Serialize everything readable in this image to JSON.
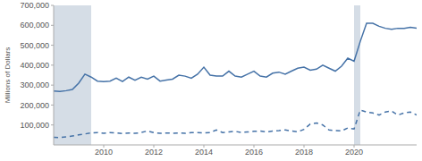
{
  "chart_data": {
    "type": "line",
    "y_label": "Millions of Dollars",
    "x": [
      2008,
      2008.25,
      2008.5,
      2008.75,
      2009,
      2009.25,
      2009.5,
      2009.75,
      2010,
      2010.25,
      2010.5,
      2010.75,
      2011,
      2011.25,
      2011.5,
      2011.75,
      2012,
      2012.25,
      2012.5,
      2012.75,
      2013,
      2013.25,
      2013.5,
      2013.75,
      2014,
      2014.25,
      2014.5,
      2014.75,
      2015,
      2015.25,
      2015.5,
      2015.75,
      2016,
      2016.25,
      2016.5,
      2016.75,
      2017,
      2017.25,
      2017.5,
      2017.75,
      2018,
      2018.25,
      2018.5,
      2018.75,
      2019,
      2019.25,
      2019.5,
      2019.75,
      2020,
      2020.25,
      2020.5,
      2020.75,
      2021,
      2021.25,
      2021.5,
      2021.75,
      2022,
      2022.25,
      2022.5
    ],
    "series": [
      {
        "color": "#4572a7",
        "line_style": "solid",
        "values": [
          270000,
          268000,
          272000,
          278000,
          310000,
          355000,
          340000,
          320000,
          318000,
          320000,
          335000,
          318000,
          340000,
          325000,
          340000,
          330000,
          345000,
          320000,
          325000,
          330000,
          350000,
          345000,
          335000,
          355000,
          390000,
          350000,
          345000,
          345000,
          370000,
          345000,
          340000,
          355000,
          370000,
          345000,
          340000,
          360000,
          365000,
          355000,
          370000,
          385000,
          390000,
          375000,
          380000,
          400000,
          385000,
          370000,
          395000,
          435000,
          420000,
          520000,
          610000,
          610000,
          595000,
          585000,
          580000,
          585000,
          585000,
          590000,
          585000
        ]
      },
      {
        "color": "#4572a7",
        "line_style": "dashed",
        "values": [
          38000,
          37000,
          40000,
          45000,
          50000,
          55000,
          60000,
          62000,
          58000,
          62000,
          60000,
          57000,
          60000,
          58000,
          62000,
          70000,
          62000,
          58000,
          60000,
          58000,
          60000,
          58000,
          62000,
          62000,
          60000,
          62000,
          75000,
          62000,
          65000,
          68000,
          62000,
          65000,
          68000,
          70000,
          65000,
          70000,
          72000,
          75000,
          70000,
          65000,
          78000,
          105000,
          110000,
          100000,
          75000,
          72000,
          70000,
          85000,
          80000,
          175000,
          165000,
          160000,
          150000,
          165000,
          170000,
          150000,
          160000,
          165000,
          150000
        ]
      }
    ],
    "xlim": [
      2008,
      2022.5
    ],
    "xticks": [
      2010,
      2012,
      2014,
      2016,
      2018,
      2020
    ],
    "ylim": [
      0,
      700000
    ],
    "yticks": [
      {
        "value": 100000,
        "label": "100,000"
      },
      {
        "value": 200000,
        "label": "200,000"
      },
      {
        "value": 300000,
        "label": "300,000"
      },
      {
        "value": 400000,
        "label": "400,000"
      },
      {
        "value": 500000,
        "label": "500,000"
      },
      {
        "value": 600000,
        "label": "600,000"
      },
      {
        "value": 700000,
        "label": "700,000"
      }
    ],
    "shaded_ranges": [
      [
        2008,
        2009.5
      ],
      [
        2020,
        2020.25
      ]
    ],
    "grid": false
  }
}
